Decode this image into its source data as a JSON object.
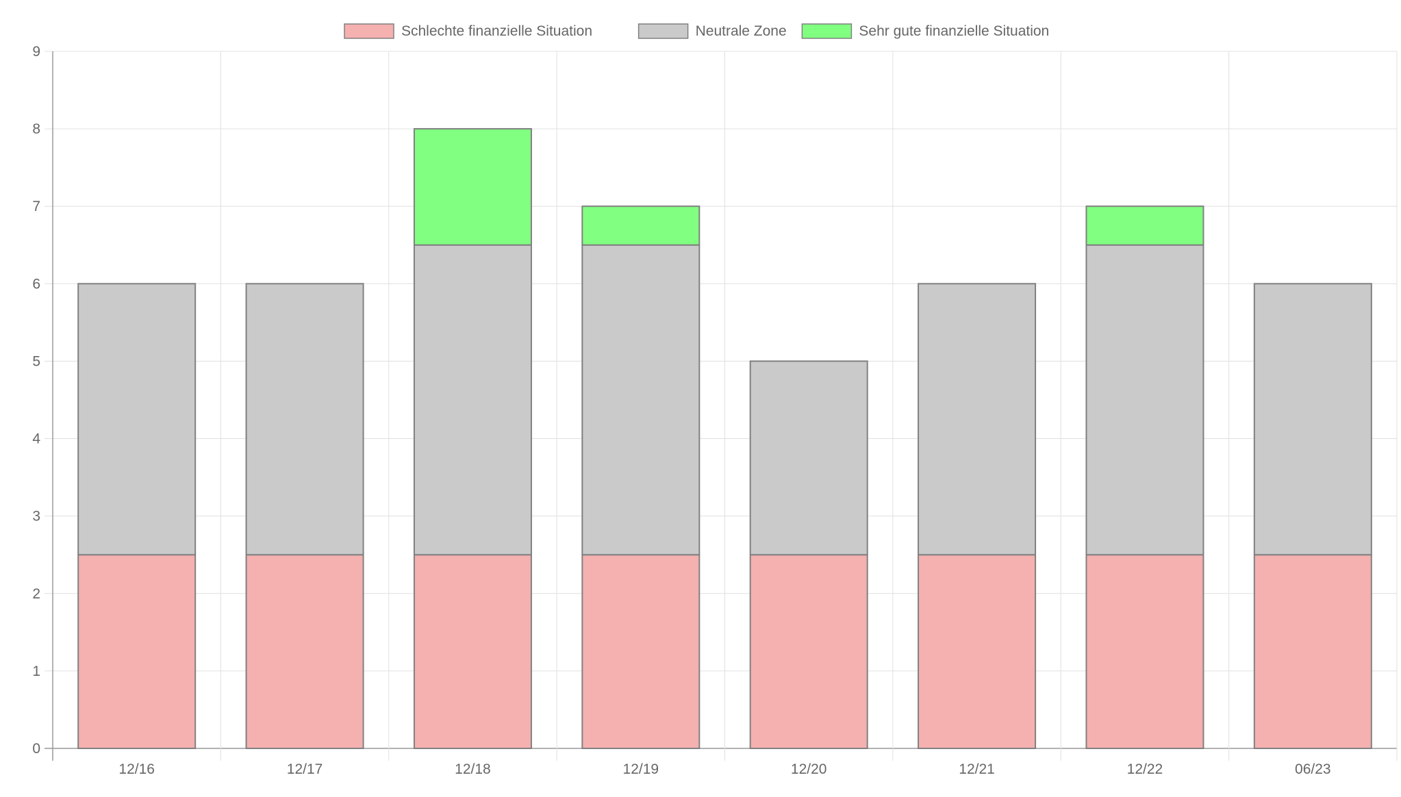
{
  "chart_data": {
    "type": "bar",
    "stacked": true,
    "title": "",
    "xlabel": "",
    "ylabel": "",
    "categories": [
      "12/16",
      "12/17",
      "12/18",
      "12/19",
      "12/20",
      "12/21",
      "12/22",
      "06/23"
    ],
    "ylim": [
      0,
      9
    ],
    "yticks": [
      0,
      1,
      2,
      3,
      4,
      5,
      6,
      7,
      8,
      9
    ],
    "grid": true,
    "legend_position": "top-center",
    "series": [
      {
        "name": "Schlechte finanzielle Situation",
        "values": [
          2.5,
          2.5,
          2.5,
          2.5,
          2.5,
          2.5,
          2.5,
          2.5
        ],
        "color": "#f5b0b0"
      },
      {
        "name": "Neutrale Zone",
        "values": [
          3.5,
          3.5,
          4.0,
          4.0,
          2.5,
          3.5,
          4.0,
          3.5
        ],
        "color": "#cacaca"
      },
      {
        "name": "Sehr gute finanzielle Situation",
        "values": [
          0,
          0,
          1.5,
          0.5,
          0,
          0,
          0.5,
          0
        ],
        "color": "#80ff80"
      }
    ],
    "bar_border_color": "#808080",
    "grid_color": "#e0e0e0",
    "axis_color": "#999999",
    "text_color": "#666666"
  }
}
